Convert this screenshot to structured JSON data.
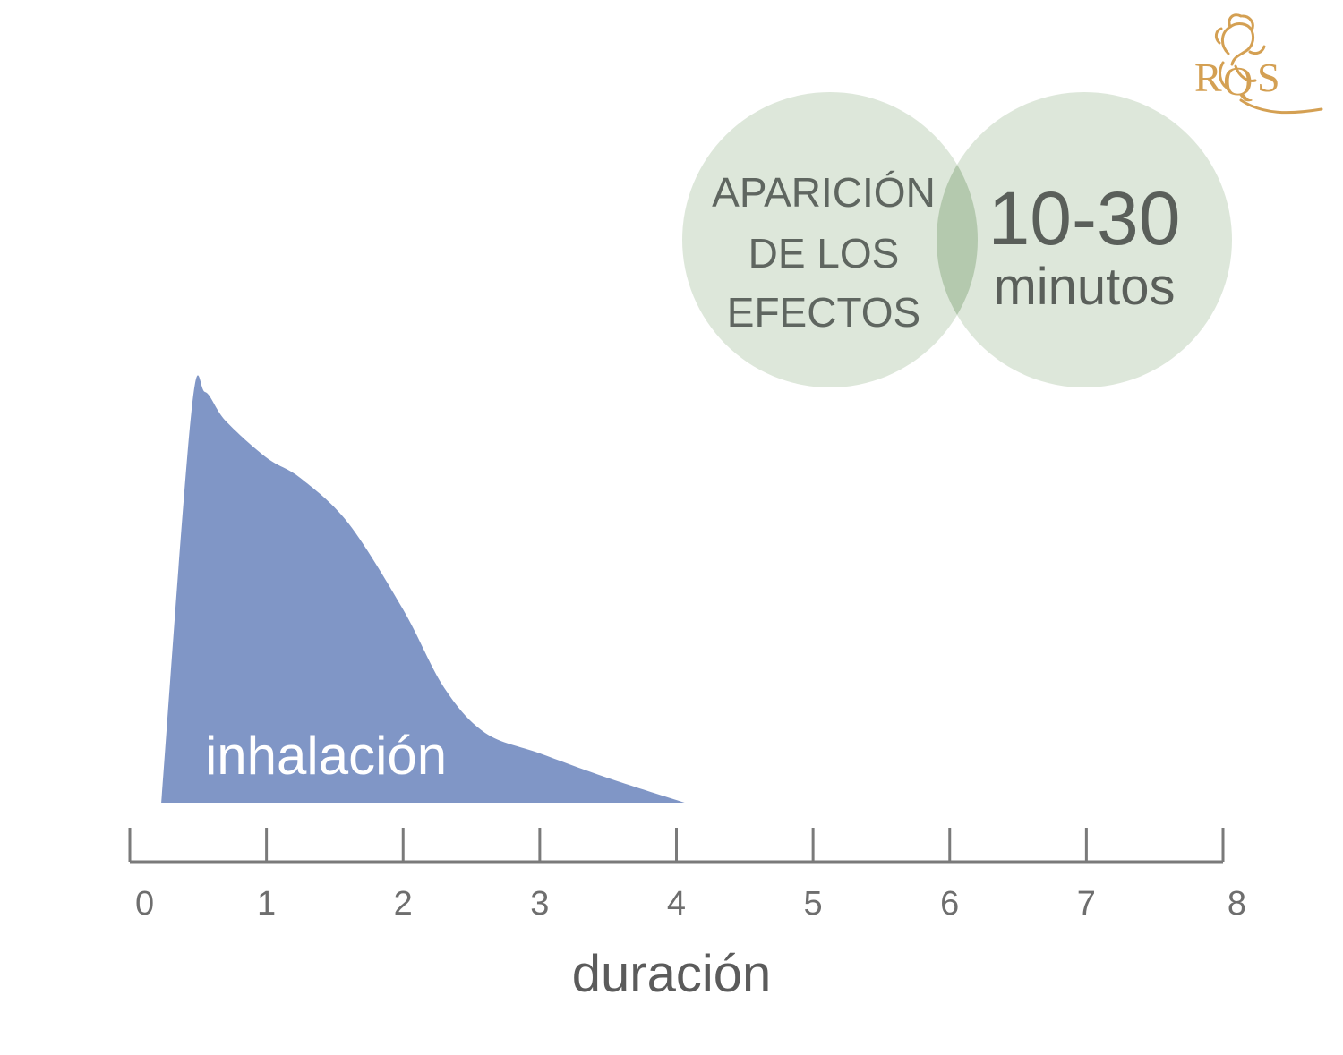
{
  "chart_data": {
    "type": "area",
    "xlabel": "duración",
    "ylabel": "",
    "xlim": [
      0,
      8
    ],
    "ylim": [
      0,
      1
    ],
    "x_ticks": [
      "0",
      "1",
      "2",
      "3",
      "4",
      "5",
      "6",
      "7",
      "8"
    ],
    "grid": false,
    "series": [
      {
        "name": "inhalación",
        "color": "#8096c6",
        "points": [
          [
            0.23,
            0.0
          ],
          [
            0.45,
            0.95
          ],
          [
            0.55,
            1.0
          ],
          [
            0.7,
            0.93
          ],
          [
            1.0,
            0.84
          ],
          [
            1.25,
            0.79
          ],
          [
            1.6,
            0.68
          ],
          [
            2.0,
            0.47
          ],
          [
            2.3,
            0.28
          ],
          [
            2.6,
            0.17
          ],
          [
            3.0,
            0.12
          ],
          [
            3.5,
            0.06
          ],
          [
            4.06,
            0.0
          ]
        ]
      }
    ]
  },
  "onset": {
    "label_lines": [
      "APARICIÓN",
      "DE LOS",
      "EFECTOS"
    ],
    "value": "10-30",
    "unit": "minutos",
    "circle_color": "#dde7da",
    "overlap_color": "#b4c9ae"
  },
  "logo": {
    "text": "RQS",
    "color": "#d4a053",
    "icon": "lion-icon"
  }
}
